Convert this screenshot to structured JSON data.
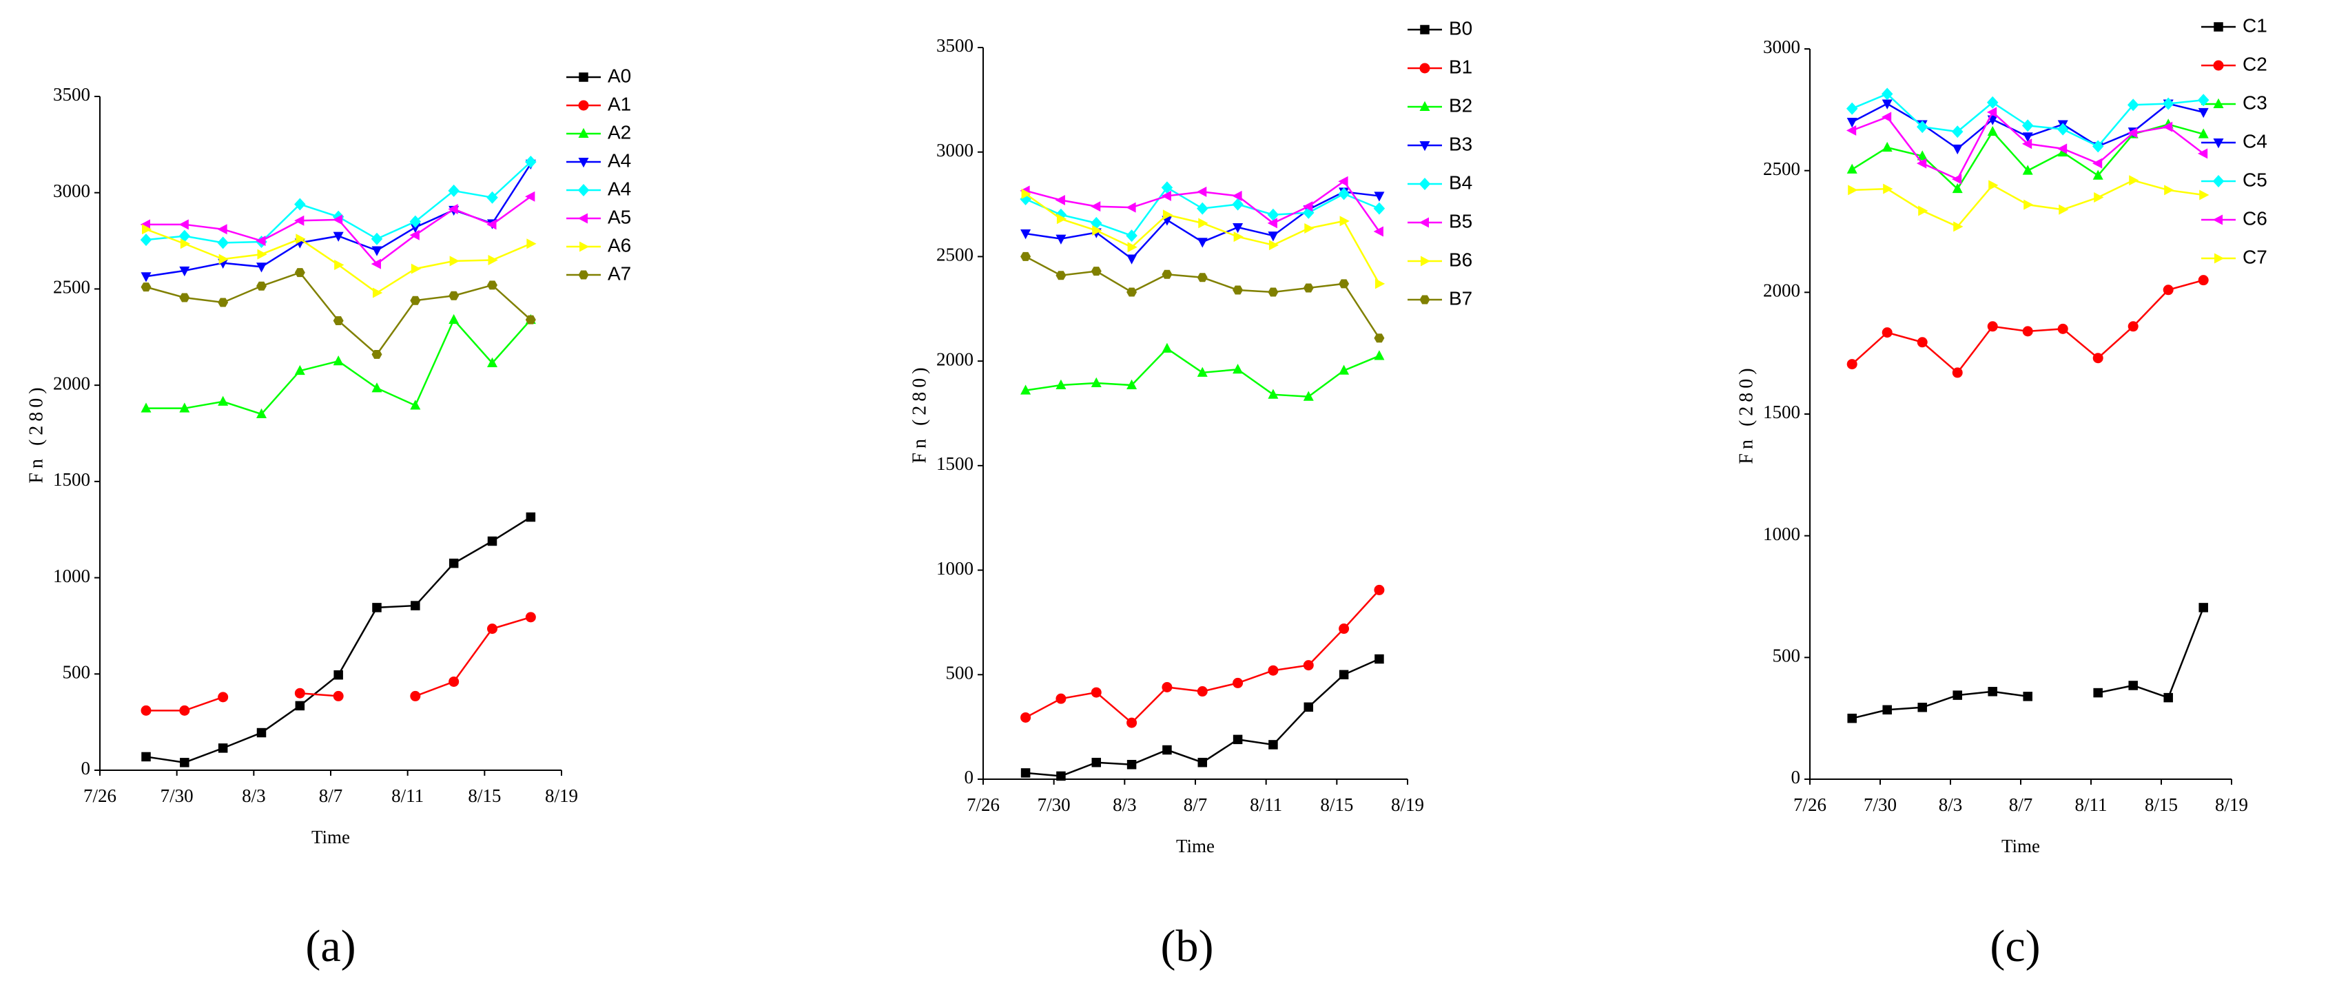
{
  "chart_data": [
    {
      "type": "line",
      "caption": "(a)",
      "y_label": "Fn (280)",
      "x_label": "Time",
      "legend": "upper right",
      "xlim": [
        0,
        24
      ],
      "xticks": [
        {
          "value": 0,
          "label": "7/26"
        },
        {
          "value": 4,
          "label": "7/30"
        },
        {
          "value": 8,
          "label": "8/3"
        },
        {
          "value": 12,
          "label": "8/7"
        },
        {
          "value": 16,
          "label": "8/11"
        },
        {
          "value": 20,
          "label": "8/15"
        },
        {
          "value": 24,
          "label": "8/19"
        }
      ],
      "ylim": [
        0,
        3500
      ],
      "yticks": [
        0,
        500,
        1000,
        1500,
        2000,
        2500,
        3000,
        3500
      ],
      "x": [
        2.4,
        4.4,
        6.4,
        8.4,
        10.4,
        12.4,
        14.4,
        16.4,
        18.4,
        20.4,
        22.4
      ],
      "series": [
        {
          "name": "A0",
          "color": "#000000",
          "marker": "square",
          "values": [
            70,
            40,
            115,
            195,
            335,
            495,
            845,
            855,
            1075,
            1190,
            1315
          ]
        },
        {
          "name": "A1",
          "color": "#ff0000",
          "marker": "circle",
          "values": [
            310,
            310,
            380,
            null,
            400,
            385,
            null,
            385,
            460,
            735,
            795
          ]
        },
        {
          "name": "A2",
          "color": "#00ff00",
          "marker": "triangle-up",
          "values": [
            1880,
            1880,
            1915,
            1850,
            2075,
            2125,
            1985,
            1895,
            2340,
            2115,
            2340
          ]
        },
        {
          "name": "A4",
          "color": "#0000ff",
          "marker": "triangle-down",
          "values": [
            2565,
            2595,
            2635,
            2615,
            2740,
            2775,
            2700,
            2820,
            2910,
            2840,
            3150
          ]
        },
        {
          "name": "A4",
          "color": "#00ffff",
          "marker": "diamond",
          "values": [
            2755,
            2775,
            2740,
            2745,
            2940,
            2875,
            2760,
            2850,
            3010,
            2975,
            3160
          ]
        },
        {
          "name": "A5",
          "color": "#ff00ff",
          "marker": "triangle-left",
          "values": [
            2835,
            2835,
            2810,
            2750,
            2855,
            2860,
            2630,
            2780,
            2915,
            2835,
            2980
          ]
        },
        {
          "name": "A6",
          "color": "#ffff00",
          "marker": "triangle-right",
          "values": [
            2810,
            2735,
            2655,
            2680,
            2760,
            2625,
            2480,
            2605,
            2645,
            2650,
            2735
          ]
        },
        {
          "name": "A7",
          "color": "#808000",
          "marker": "hexagon",
          "values": [
            2510,
            2455,
            2430,
            2515,
            2585,
            2335,
            2160,
            2440,
            2465,
            2520,
            2340
          ]
        }
      ]
    },
    {
      "type": "line",
      "caption": "(b)",
      "y_label": "Fn (280)",
      "x_label": "Time",
      "legend": "upper right",
      "xlim": [
        0,
        24
      ],
      "xticks": [
        {
          "value": 0,
          "label": "7/26"
        },
        {
          "value": 4,
          "label": "7/30"
        },
        {
          "value": 8,
          "label": "8/3"
        },
        {
          "value": 12,
          "label": "8/7"
        },
        {
          "value": 16,
          "label": "8/11"
        },
        {
          "value": 20,
          "label": "8/15"
        },
        {
          "value": 24,
          "label": "8/19"
        }
      ],
      "ylim": [
        0,
        3500
      ],
      "yticks": [
        0,
        500,
        1000,
        1500,
        2000,
        2500,
        3000,
        3500
      ],
      "x": [
        2.4,
        4.4,
        6.4,
        8.4,
        10.4,
        12.4,
        14.4,
        16.4,
        18.4,
        20.4,
        22.4
      ],
      "series": [
        {
          "name": "B0",
          "color": "#000000",
          "marker": "square",
          "values": [
            30,
            15,
            80,
            70,
            140,
            80,
            190,
            165,
            345,
            500,
            575
          ]
        },
        {
          "name": "B1",
          "color": "#ff0000",
          "marker": "circle",
          "values": [
            295,
            385,
            415,
            270,
            440,
            420,
            460,
            520,
            545,
            720,
            905
          ]
        },
        {
          "name": "B2",
          "color": "#00ff00",
          "marker": "triangle-up",
          "values": [
            1860,
            1885,
            1895,
            1885,
            2060,
            1945,
            1960,
            1840,
            1830,
            1955,
            2025
          ]
        },
        {
          "name": "B3",
          "color": "#0000ff",
          "marker": "triangle-down",
          "values": [
            2610,
            2585,
            2615,
            2490,
            2675,
            2570,
            2640,
            2600,
            2725,
            2810,
            2790
          ]
        },
        {
          "name": "B4",
          "color": "#00ffff",
          "marker": "diamond",
          "values": [
            2775,
            2700,
            2660,
            2600,
            2830,
            2730,
            2750,
            2700,
            2710,
            2800,
            2730
          ]
        },
        {
          "name": "B5",
          "color": "#ff00ff",
          "marker": "triangle-left",
          "values": [
            2815,
            2770,
            2740,
            2735,
            2790,
            2810,
            2790,
            2660,
            2740,
            2860,
            2620
          ]
        },
        {
          "name": "B6",
          "color": "#ffff00",
          "marker": "triangle-right",
          "values": [
            2800,
            2680,
            2625,
            2545,
            2700,
            2660,
            2595,
            2555,
            2635,
            2670,
            2370
          ]
        },
        {
          "name": "B7",
          "color": "#808000",
          "marker": "hexagon",
          "values": [
            2500,
            2410,
            2430,
            2330,
            2415,
            2400,
            2340,
            2330,
            2350,
            2370,
            2110
          ]
        }
      ]
    },
    {
      "type": "line",
      "caption": "(c)",
      "y_label": "Fn (280)",
      "x_label": "Time",
      "legend": "upper right",
      "xlim": [
        0,
        24
      ],
      "xticks": [
        {
          "value": 0,
          "label": "7/26"
        },
        {
          "value": 4,
          "label": "7/30"
        },
        {
          "value": 8,
          "label": "8/3"
        },
        {
          "value": 12,
          "label": "8/7"
        },
        {
          "value": 16,
          "label": "8/11"
        },
        {
          "value": 20,
          "label": "8/15"
        },
        {
          "value": 24,
          "label": "8/19"
        }
      ],
      "ylim": [
        0,
        3000
      ],
      "yticks": [
        0,
        500,
        1000,
        1500,
        2000,
        2500,
        3000
      ],
      "x": [
        2.4,
        4.4,
        6.4,
        8.4,
        10.4,
        12.4,
        14.4,
        16.4,
        18.4,
        20.4,
        22.4
      ],
      "series": [
        {
          "name": "C1",
          "color": "#000000",
          "marker": "square",
          "values": [
            250,
            285,
            295,
            345,
            360,
            340,
            null,
            355,
            385,
            335,
            705
          ]
        },
        {
          "name": "C2",
          "color": "#ff0000",
          "marker": "circle",
          "values": [
            1705,
            1835,
            1795,
            1670,
            1860,
            1840,
            1850,
            1730,
            1860,
            2010,
            2050
          ]
        },
        {
          "name": "C3",
          "color": "#00ff00",
          "marker": "triangle-up",
          "values": [
            2505,
            2595,
            2560,
            2425,
            2660,
            2500,
            2575,
            2480,
            2650,
            2690,
            2650
          ]
        },
        {
          "name": "C4",
          "color": "#0000ff",
          "marker": "triangle-down",
          "values": [
            2700,
            2775,
            2690,
            2590,
            2710,
            2640,
            2690,
            2600,
            2660,
            2775,
            2740
          ]
        },
        {
          "name": "C5",
          "color": "#00ffff",
          "marker": "diamond",
          "values": [
            2755,
            2815,
            2680,
            2660,
            2780,
            2685,
            2670,
            2600,
            2770,
            2775,
            2790
          ]
        },
        {
          "name": "C6",
          "color": "#ff00ff",
          "marker": "triangle-left",
          "values": [
            2665,
            2720,
            2530,
            2465,
            2740,
            2610,
            2590,
            2530,
            2655,
            2680,
            2570
          ]
        },
        {
          "name": "C7",
          "color": "#ffff00",
          "marker": "triangle-right",
          "values": [
            2420,
            2425,
            2335,
            2270,
            2440,
            2360,
            2340,
            2390,
            2460,
            2420,
            2400
          ]
        }
      ]
    }
  ]
}
